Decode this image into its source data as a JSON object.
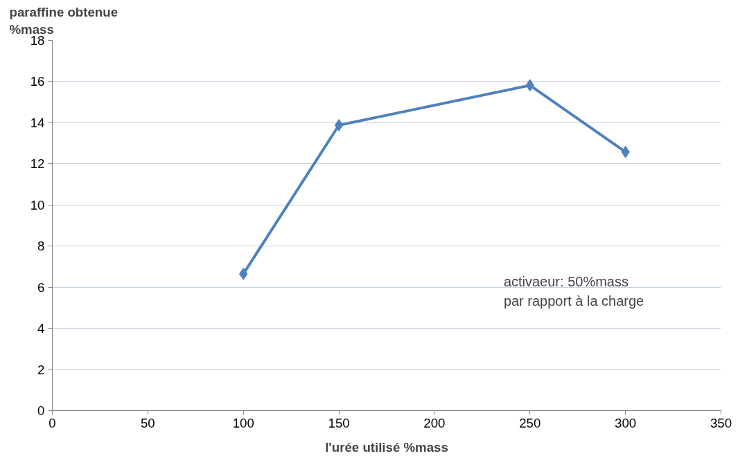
{
  "chart_data": {
    "type": "line",
    "xlabel": "l'urée utilisé %mass",
    "ylabel": "paraffine obtenue\n %mass",
    "x": [
      100,
      150,
      250,
      300
    ],
    "series": [
      {
        "color": "#4f81bd",
        "values": [
          6.65,
          13.88,
          15.82,
          12.58
        ]
      }
    ],
    "xlim": [
      0,
      350
    ],
    "xticks": [
      0,
      50,
      100,
      150,
      200,
      250,
      300,
      350
    ],
    "ylim": [
      0,
      18
    ],
    "yticks": [
      0,
      2,
      4,
      6,
      8,
      10,
      12,
      14,
      16,
      18
    ],
    "grid": "y",
    "marker": "diamond",
    "line_style": "solid",
    "annotations": [
      "activaeur: 50%mass\npar  rapport à la charge"
    ]
  }
}
